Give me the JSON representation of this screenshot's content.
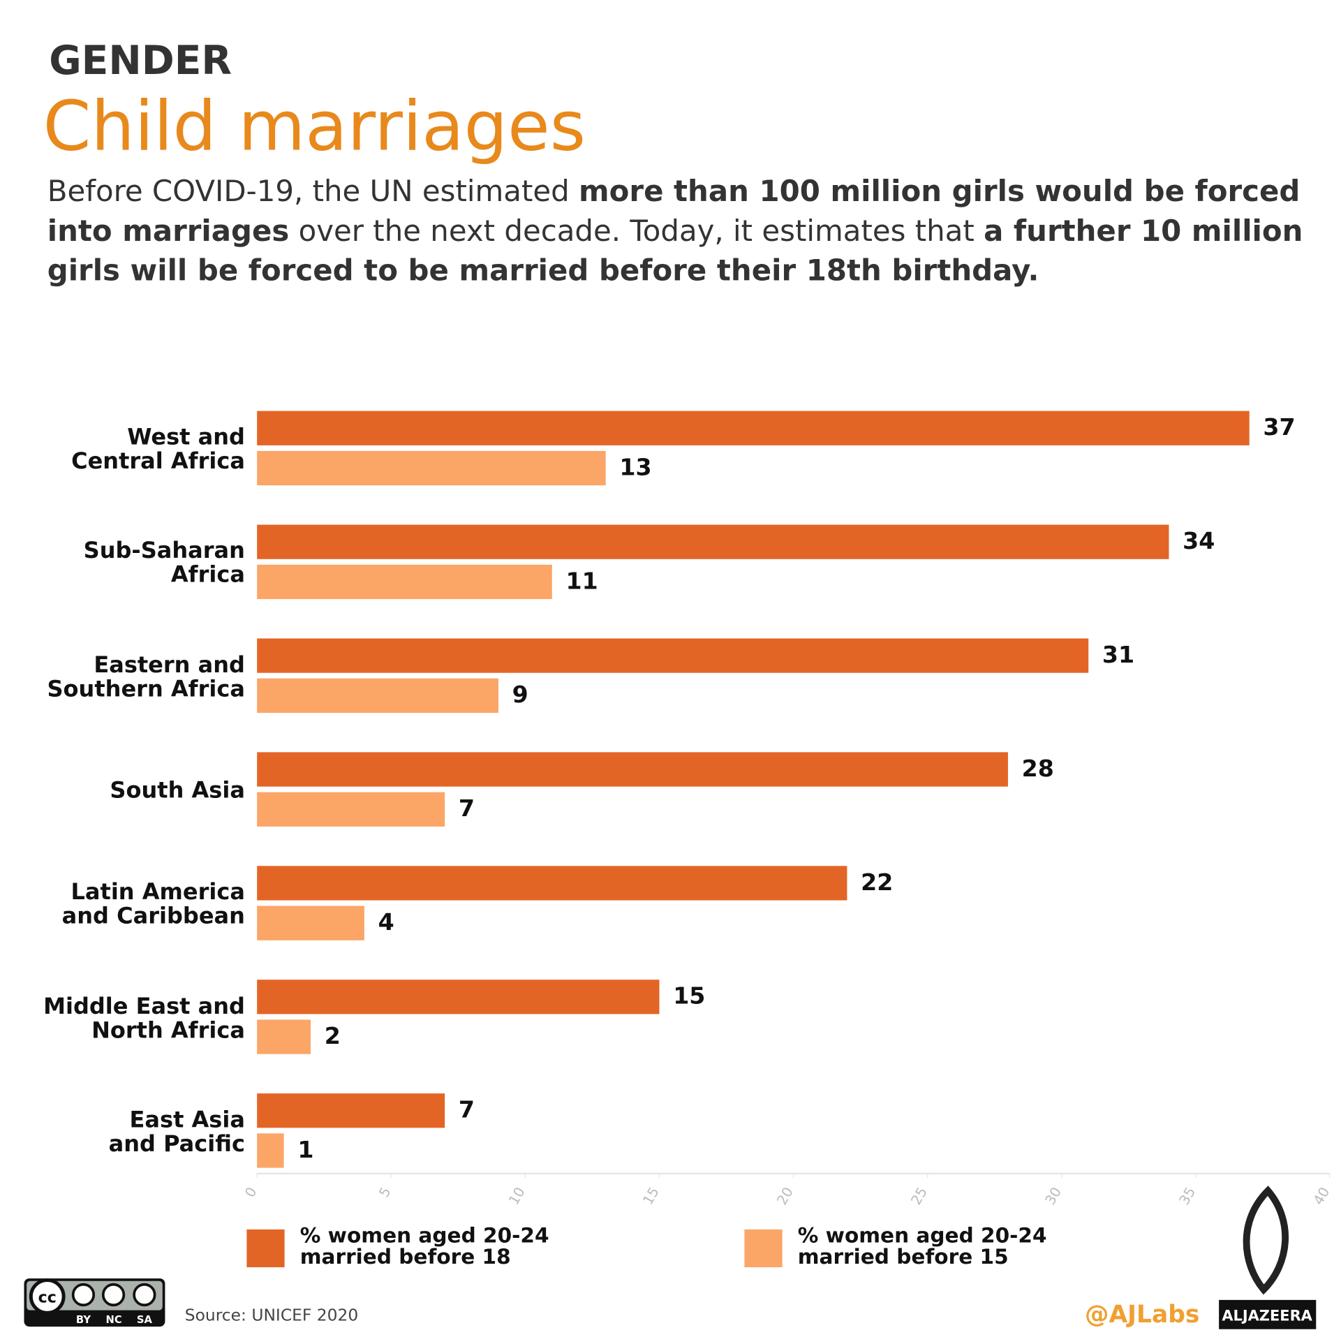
{
  "header": {
    "section": "GENDER",
    "title": "Child marriages",
    "subtitle_parts": [
      "Before COVID-19, the UN estimated ",
      "more than 100 million girls would be forced into marriages",
      " over the next decade. Today, it estimates that ",
      "a further 10 million girls will be forced to be married before their 18th birthday."
    ]
  },
  "chart_data": {
    "type": "bar",
    "orientation": "horizontal",
    "categories": [
      "West and\nCentral Africa",
      "Sub-Saharan\nAfrica",
      "Eastern and\nSouthern Africa",
      "South Asia",
      "Latin America\nand Caribbean",
      "Middle East and\nNorth Africa",
      "East Asia\nand Pacific"
    ],
    "series": [
      {
        "name": "% women aged 20-24\nmarried before 18",
        "color": "#e36526",
        "values": [
          37,
          34,
          31,
          28,
          22,
          15,
          7
        ]
      },
      {
        "name": "% women aged 20-24\nmarried before 15",
        "color": "#fba567",
        "values": [
          13,
          11,
          9,
          7,
          4,
          2,
          1
        ]
      }
    ],
    "xlim": [
      0,
      40
    ],
    "xticks": [
      0,
      5,
      10,
      15,
      20,
      25,
      30,
      35,
      40
    ]
  },
  "footer": {
    "source": "Source: UNICEF 2020",
    "handle": "@AJLabs",
    "brand": "ALJAZEERA",
    "license": "cc",
    "license_terms": [
      "BY",
      "NC",
      "SA"
    ]
  }
}
